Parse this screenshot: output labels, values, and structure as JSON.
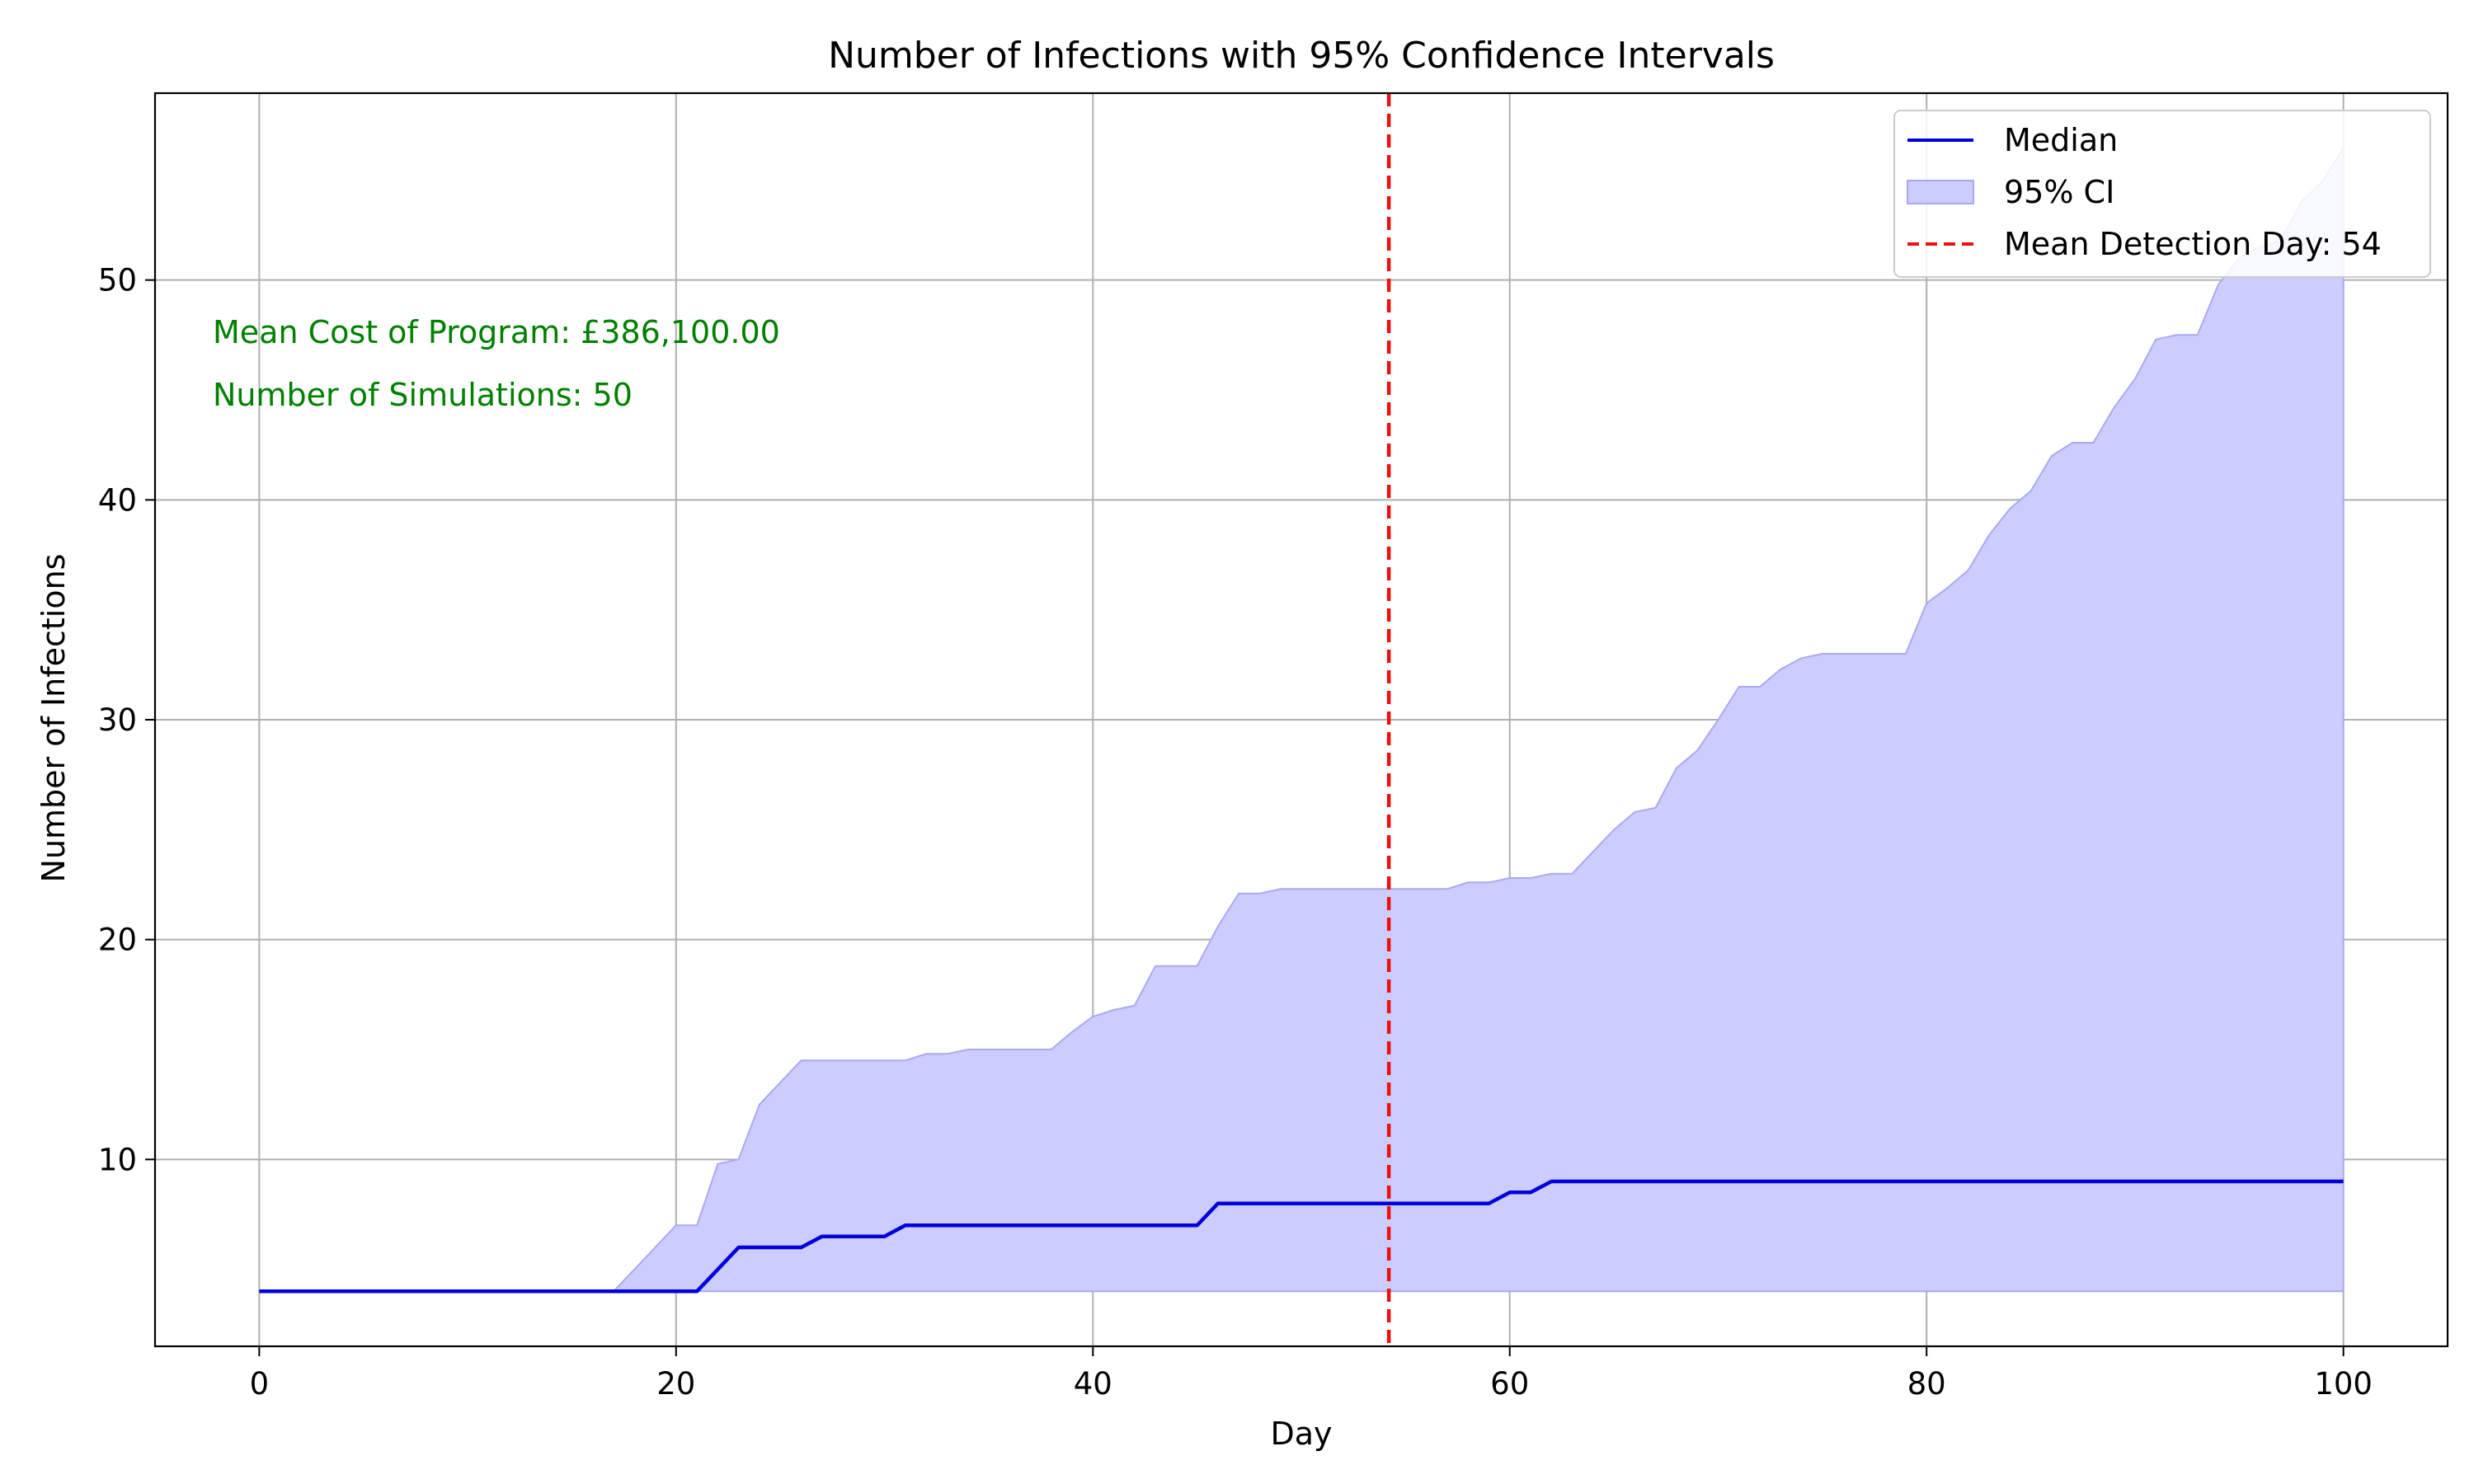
{
  "chart_data": {
    "type": "line",
    "title": "Number of Infections with 95% Confidence Intervals",
    "xlabel": "Day",
    "ylabel": "Number of Infections",
    "xlim": [
      -5,
      105
    ],
    "ylim": [
      1.5,
      58.5
    ],
    "xticks": [
      0,
      20,
      40,
      60,
      80,
      100
    ],
    "yticks": [
      10,
      20,
      30,
      40,
      50
    ],
    "grid": true,
    "legend_position": "top-right",
    "colors": {
      "median": "#0000dd",
      "ci_fill": "#ccccff",
      "ci_edge": "#a9a9f2",
      "detection": "#ee1111",
      "annotation": "#008000",
      "grid": "#b0b0b0"
    },
    "series": [
      {
        "name": "Median",
        "x": [
          0,
          21,
          22,
          23,
          26,
          27,
          30,
          31,
          45,
          46,
          59,
          60,
          61,
          62,
          100
        ],
        "values": [
          4,
          4,
          5,
          6,
          6,
          6.5,
          6.5,
          7,
          7,
          8,
          8,
          8.5,
          8.5,
          9,
          9
        ]
      },
      {
        "name": "95% CI",
        "kind": "band",
        "x": [
          0,
          17,
          18,
          19,
          20,
          21,
          22,
          23,
          24,
          25,
          26,
          27,
          28,
          29,
          30,
          31,
          32,
          33,
          34,
          35,
          36,
          37,
          38,
          39,
          40,
          41,
          42,
          43,
          44,
          45,
          46,
          47,
          48,
          49,
          50,
          51,
          52,
          53,
          54,
          55,
          56,
          57,
          58,
          59,
          60,
          61,
          62,
          63,
          64,
          65,
          66,
          67,
          68,
          69,
          70,
          71,
          72,
          73,
          74,
          75,
          76,
          77,
          78,
          79,
          80,
          81,
          82,
          83,
          84,
          85,
          86,
          87,
          88,
          89,
          90,
          91,
          92,
          93,
          94,
          95,
          96,
          97,
          98,
          99,
          100
        ],
        "lower": [
          4,
          4,
          4,
          4,
          4,
          4,
          4,
          4,
          4,
          4,
          4,
          4,
          4,
          4,
          4,
          4,
          4,
          4,
          4,
          4,
          4,
          4,
          4,
          4,
          4,
          4,
          4,
          4,
          4,
          4,
          4,
          4,
          4,
          4,
          4,
          4,
          4,
          4,
          4,
          4,
          4,
          4,
          4,
          4,
          4,
          4,
          4,
          4,
          4,
          4,
          4,
          4,
          4,
          4,
          4,
          4,
          4,
          4,
          4,
          4,
          4,
          4,
          4,
          4,
          4,
          4,
          4,
          4,
          4,
          4,
          4,
          4,
          4,
          4,
          4,
          4,
          4,
          4,
          4,
          4,
          4,
          4,
          4,
          4,
          4
        ],
        "upper": [
          4,
          4,
          5,
          6,
          7,
          7,
          9.8,
          10,
          12.5,
          13.5,
          14.5,
          14.5,
          14.5,
          14.5,
          14.5,
          14.5,
          14.8,
          14.8,
          15,
          15,
          15,
          15,
          15,
          15.8,
          16.5,
          16.8,
          17,
          18.8,
          18.8,
          18.8,
          20.6,
          22.1,
          22.1,
          22.3,
          22.3,
          22.3,
          22.3,
          22.3,
          22.3,
          22.3,
          22.3,
          22.3,
          22.6,
          22.6,
          22.8,
          22.8,
          23,
          23,
          24,
          25,
          25.8,
          26,
          27.8,
          28.6,
          30,
          31.5,
          31.5,
          32.3,
          32.8,
          33,
          33,
          33,
          33,
          33,
          35.3,
          36,
          36.8,
          38.4,
          39.6,
          40.4,
          42,
          42.6,
          42.6,
          44.2,
          45.5,
          47.3,
          47.5,
          47.5,
          49.8,
          51,
          51.5,
          51.8,
          53.6,
          54.5,
          56
        ]
      }
    ],
    "detection_line": {
      "name": "Mean Detection Day: 54",
      "x": 54.2
    },
    "annotations": [
      "Mean Cost of Program: £386,100.00",
      "Number of Simulations: 50"
    ]
  }
}
